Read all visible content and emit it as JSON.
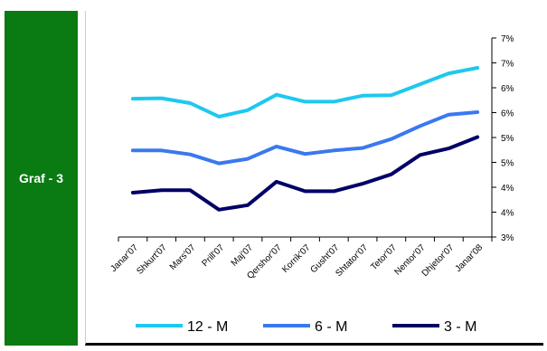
{
  "side_label": "Graf - 3",
  "chart_data": {
    "type": "line",
    "categories": [
      "Janar'07",
      "Shkurt'07",
      "Mars'07",
      "Prill'07",
      "Maj'07",
      "Qershor'07",
      "Korrik'07",
      "Gusht'07",
      "Shtator'07",
      "Tetor'07",
      "Nentor'07",
      "Dhjetor'07",
      "Janar'08"
    ],
    "y_tick_labels": [
      "3%",
      "4%",
      "4%",
      "5%",
      "5%",
      "6%",
      "6%",
      "7%",
      "7%"
    ],
    "ylim": [
      3.0,
      7.0
    ],
    "series": [
      {
        "name": "12 - M",
        "color": "#1ec8f0",
        "values": [
          5.78,
          5.79,
          5.69,
          5.42,
          5.55,
          5.86,
          5.72,
          5.72,
          5.84,
          5.85,
          6.07,
          6.29,
          6.4
        ]
      },
      {
        "name": "6 - M",
        "color": "#3a78f0",
        "values": [
          4.74,
          4.74,
          4.66,
          4.48,
          4.57,
          4.82,
          4.67,
          4.74,
          4.79,
          4.97,
          5.23,
          5.46,
          5.51
        ]
      },
      {
        "name": "3 - M",
        "color": "#000066",
        "values": [
          3.89,
          3.94,
          3.94,
          3.55,
          3.64,
          4.11,
          3.92,
          3.92,
          4.07,
          4.26,
          4.65,
          4.78,
          5.01
        ]
      }
    ],
    "legend_position": "bottom",
    "grid": false
  }
}
